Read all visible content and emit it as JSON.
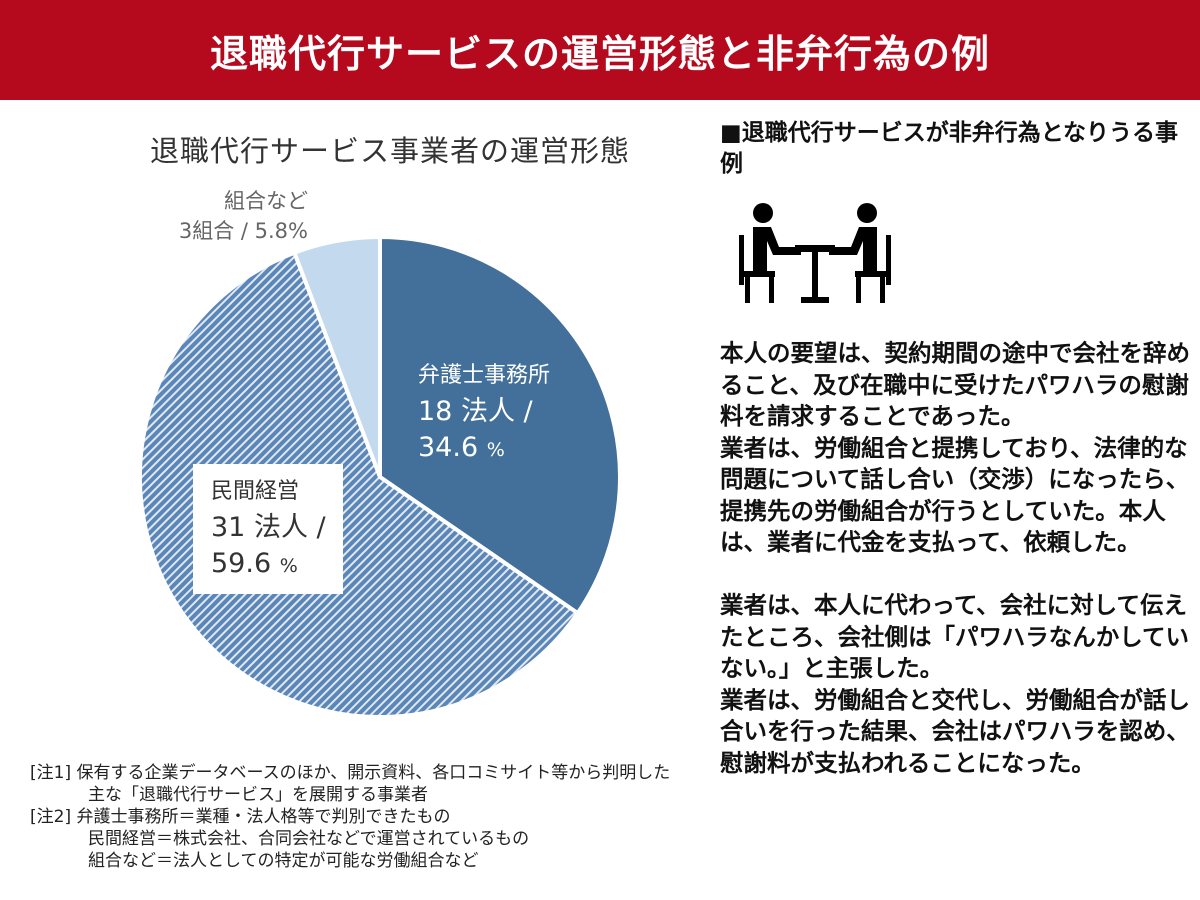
{
  "header": {
    "title": "退職代行サービスの運営形態と非弁行為の例",
    "bg_color": "#b5091e"
  },
  "chart_data": {
    "type": "pie",
    "title": "退職代行サービス事業者の運営形態",
    "slices": [
      {
        "name": "弁護士事務所",
        "count": 18,
        "unit": "法人",
        "percent": 34.6,
        "color": "#43709a",
        "pattern": "solid"
      },
      {
        "name": "民間経営",
        "count": 31,
        "unit": "法人",
        "percent": 59.6,
        "color": "#5b86b8",
        "pattern": "hatched"
      },
      {
        "name": "組合など",
        "count": 3,
        "unit": "組合",
        "percent": 5.8,
        "color": "#c3d9ee",
        "pattern": "solid"
      }
    ],
    "labels": {
      "lawyer_name": "弁護士事務所",
      "lawyer_value": "18 法人 /",
      "lawyer_pct": "34.6",
      "pct_sign": "%",
      "private_name": "民間経営",
      "private_value": "31 法人 /",
      "private_pct": "59.6",
      "union_name": "組合など",
      "union_value": "3組合 / 5.8%"
    },
    "notes": [
      "[注1] 保有する企業データベースのほか、開示資料、各口コミサイト等から判明した",
      "主な「退職代行サービス」を展開する事業者",
      "[注2] 弁護士事務所＝業種・法人格等で判別できたもの",
      "民間経営＝株式会社、合同会社などで運営されているもの",
      "組合など＝法人としての特定が可能な労働組合など"
    ]
  },
  "right": {
    "heading": "■退職代行サービスが非弁行為となりうる事例",
    "icon": "meeting-people-table-icon",
    "body": "本人の要望は、契約期間の途中で会社を辞めること、及び在職中に受けたパワハラの慰謝料を請求することであった。\n業者は、労働組合と提携しており、法律的な問題について話し合い（交渉）になったら、提携先の労働組合が行うとしていた。本人は、業者に代金を支払って、依頼した。\n\n業者は、本人に代わって、会社に対して伝えたところ、会社側は「パワハラなんかしていない。」と主張した。\n業者は、労働組合と交代し、労働組合が話し合いを行った結果、会社はパワハラを認め、慰謝料が支払われることになった。"
  }
}
